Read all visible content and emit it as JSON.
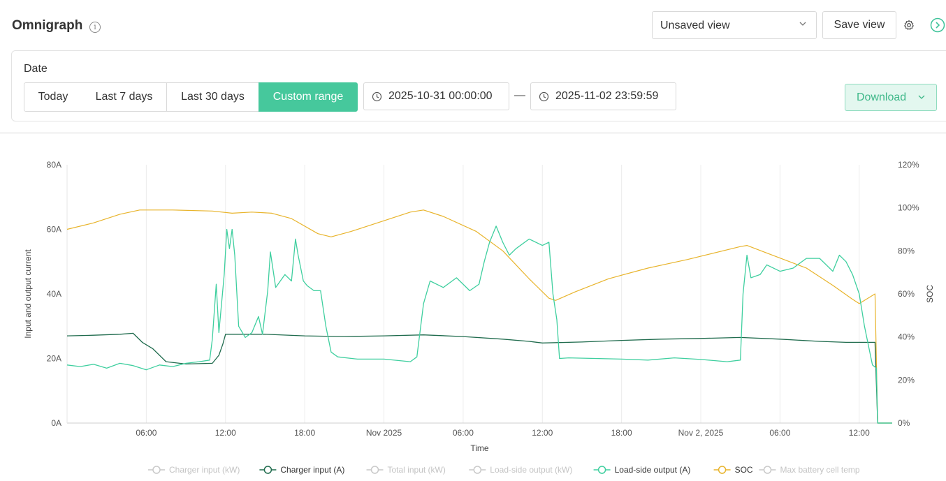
{
  "header": {
    "title": "Omnigraph",
    "view_select_value": "Unsaved view",
    "save_view_label": "Save view"
  },
  "date_filter": {
    "label": "Date",
    "options": [
      "Today",
      "Last 7 days",
      "Last 30 days",
      "Custom range"
    ],
    "active_option": "Custom range",
    "start": "2025-10-31 00:00:00",
    "separator": "—",
    "end": "2025-11-02 23:59:59",
    "download_label": "Download"
  },
  "colors": {
    "accent": "#46c89c",
    "charger_input_a": "#1f6b4d",
    "load_side_output_a": "#3fcf9f",
    "soc": "#e8b42c",
    "disabled": "#c9c9c9"
  },
  "chart_data": {
    "type": "line",
    "xlabel": "Time",
    "ylabel_left": "Input and output current",
    "ylabel_right": "SOC",
    "x_range": [
      "2025-10-31 00:00",
      "2025-11-02 24:00"
    ],
    "ylim_left": [
      0,
      80
    ],
    "ylim_right": [
      0,
      120
    ],
    "y_ticks_left": [
      "0A",
      "20A",
      "40A",
      "60A",
      "80A"
    ],
    "y_ticks_right": [
      "0%",
      "20%",
      "40%",
      "60%",
      "80%",
      "100%",
      "120%"
    ],
    "x_ticks": [
      {
        "hour": 6,
        "label": "06:00"
      },
      {
        "hour": 12,
        "label": "12:00"
      },
      {
        "hour": 18,
        "label": "18:00"
      },
      {
        "hour": 24,
        "label": "Nov 2025"
      },
      {
        "hour": 30,
        "label": "06:00"
      },
      {
        "hour": 36,
        "label": "12:00"
      },
      {
        "hour": 42,
        "label": "18:00"
      },
      {
        "hour": 48,
        "label": "Nov 2, 2025"
      },
      {
        "hour": 54,
        "label": "06:00"
      },
      {
        "hour": 60,
        "label": "12:00"
      }
    ],
    "grid": "vertical",
    "legend_position": "bottom",
    "legend": [
      {
        "name": "Charger input (kW)",
        "enabled": false,
        "color": "#c9c9c9"
      },
      {
        "name": "Charger input (A)",
        "enabled": true,
        "color": "#1f6b4d"
      },
      {
        "name": "Total input (kW)",
        "enabled": false,
        "color": "#c9c9c9"
      },
      {
        "name": "Load-side output (kW)",
        "enabled": false,
        "color": "#c9c9c9"
      },
      {
        "name": "Load-side output (A)",
        "enabled": true,
        "color": "#3fcf9f"
      },
      {
        "name": "SOC",
        "enabled": true,
        "color": "#e8b42c"
      },
      {
        "name": "Max battery cell temp",
        "enabled": false,
        "color": "#c9c9c9"
      }
    ],
    "series": [
      {
        "name": "SOC",
        "axis": "right",
        "color": "#e8b42c",
        "points": [
          [
            0,
            90
          ],
          [
            2,
            93
          ],
          [
            4,
            97
          ],
          [
            5.5,
            99
          ],
          [
            8,
            99
          ],
          [
            11,
            98.5
          ],
          [
            12.5,
            97.5
          ],
          [
            14,
            98
          ],
          [
            15.5,
            97.5
          ],
          [
            17,
            95
          ],
          [
            19,
            88
          ],
          [
            20,
            86.5
          ],
          [
            21.5,
            89
          ],
          [
            24,
            94
          ],
          [
            26,
            98
          ],
          [
            27,
            99
          ],
          [
            28.5,
            96
          ],
          [
            31,
            89
          ],
          [
            33,
            80
          ],
          [
            35,
            67
          ],
          [
            36.5,
            58
          ],
          [
            37,
            57
          ],
          [
            38.5,
            61
          ],
          [
            41,
            67
          ],
          [
            44,
            72
          ],
          [
            47,
            76
          ],
          [
            51,
            82
          ],
          [
            51.5,
            82.5
          ],
          [
            53,
            79
          ],
          [
            56,
            72
          ],
          [
            58,
            64
          ],
          [
            59.5,
            57.5
          ],
          [
            60,
            55.5
          ],
          [
            61.2,
            60
          ],
          [
            61.4,
            0
          ],
          [
            62.5,
            0
          ]
        ]
      },
      {
        "name": "Charger input (A)",
        "axis": "left",
        "color": "#1f6b4d",
        "points": [
          [
            0,
            27
          ],
          [
            2,
            27.2
          ],
          [
            4,
            27.5
          ],
          [
            5,
            27.8
          ],
          [
            5.7,
            25
          ],
          [
            6.5,
            23
          ],
          [
            7.5,
            19
          ],
          [
            9,
            18.3
          ],
          [
            11,
            18.5
          ],
          [
            11.5,
            21
          ],
          [
            11.8,
            24.5
          ],
          [
            12,
            27.5
          ],
          [
            15,
            27.5
          ],
          [
            18,
            27
          ],
          [
            21,
            26.8
          ],
          [
            24,
            27
          ],
          [
            27,
            27.3
          ],
          [
            30,
            26.8
          ],
          [
            33,
            26
          ],
          [
            35,
            25.3
          ],
          [
            36,
            24.8
          ],
          [
            39,
            25.1
          ],
          [
            42,
            25.6
          ],
          [
            45,
            26
          ],
          [
            48,
            26.2
          ],
          [
            51,
            26.5
          ],
          [
            54,
            26
          ],
          [
            57,
            25.3
          ],
          [
            59,
            25
          ],
          [
            61.2,
            25
          ],
          [
            61.4,
            0
          ],
          [
            62.5,
            0
          ]
        ]
      },
      {
        "name": "Load-side output (A)",
        "axis": "left",
        "color": "#3fcf9f",
        "points": [
          [
            0,
            18
          ],
          [
            1,
            17.5
          ],
          [
            2,
            18.2
          ],
          [
            3,
            17
          ],
          [
            4,
            18.5
          ],
          [
            5,
            17.8
          ],
          [
            6,
            16.5
          ],
          [
            7,
            18
          ],
          [
            8,
            17.5
          ],
          [
            9,
            18.5
          ],
          [
            10,
            19
          ],
          [
            10.8,
            19.5
          ],
          [
            11,
            26
          ],
          [
            11.3,
            43
          ],
          [
            11.5,
            28
          ],
          [
            11.9,
            46
          ],
          [
            12.1,
            60
          ],
          [
            12.3,
            54
          ],
          [
            12.5,
            60
          ],
          [
            12.7,
            52
          ],
          [
            13,
            30
          ],
          [
            13.5,
            26.5
          ],
          [
            14,
            28
          ],
          [
            14.5,
            33
          ],
          [
            14.8,
            27.5
          ],
          [
            15.2,
            41
          ],
          [
            15.4,
            53
          ],
          [
            15.8,
            42
          ],
          [
            16.5,
            46
          ],
          [
            17,
            44
          ],
          [
            17.3,
            57
          ],
          [
            17.5,
            52
          ],
          [
            17.9,
            44
          ],
          [
            18.2,
            42.5
          ],
          [
            18.7,
            41
          ],
          [
            19.2,
            41
          ],
          [
            19.6,
            30
          ],
          [
            20,
            22
          ],
          [
            20.5,
            20.5
          ],
          [
            22,
            19.8
          ],
          [
            24,
            19.8
          ],
          [
            26,
            19
          ],
          [
            26.5,
            20.5
          ],
          [
            27,
            37
          ],
          [
            27.5,
            44
          ],
          [
            28.5,
            42
          ],
          [
            29.5,
            45
          ],
          [
            30.5,
            41
          ],
          [
            31.2,
            43
          ],
          [
            31.6,
            50
          ],
          [
            32,
            56
          ],
          [
            32.5,
            61
          ],
          [
            33,
            56
          ],
          [
            33.5,
            52
          ],
          [
            34,
            54
          ],
          [
            35,
            57
          ],
          [
            36,
            55
          ],
          [
            36.5,
            56
          ],
          [
            36.8,
            40
          ],
          [
            37.1,
            32
          ],
          [
            37.3,
            20
          ],
          [
            38,
            20.2
          ],
          [
            40,
            20
          ],
          [
            42,
            19.8
          ],
          [
            44,
            19.5
          ],
          [
            46,
            20.2
          ],
          [
            48,
            19.7
          ],
          [
            50,
            19
          ],
          [
            51,
            19.5
          ],
          [
            51.2,
            40
          ],
          [
            51.5,
            52
          ],
          [
            51.8,
            45
          ],
          [
            52.5,
            46
          ],
          [
            53,
            49
          ],
          [
            54,
            47
          ],
          [
            55,
            48
          ],
          [
            56,
            51
          ],
          [
            57,
            51
          ],
          [
            58,
            47
          ],
          [
            58.5,
            52
          ],
          [
            59,
            50
          ],
          [
            59.5,
            46
          ],
          [
            60,
            40
          ],
          [
            60.4,
            30
          ],
          [
            61,
            18
          ],
          [
            61.3,
            17
          ],
          [
            61.4,
            0
          ],
          [
            62.5,
            0
          ]
        ]
      }
    ]
  }
}
